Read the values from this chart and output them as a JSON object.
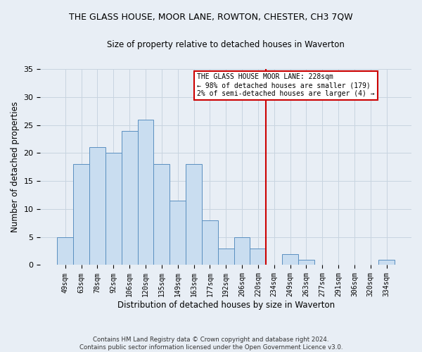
{
  "title": "THE GLASS HOUSE, MOOR LANE, ROWTON, CHESTER, CH3 7QW",
  "subtitle": "Size of property relative to detached houses in Waverton",
  "xlabel": "Distribution of detached houses by size in Waverton",
  "ylabel": "Number of detached properties",
  "footer_line1": "Contains HM Land Registry data © Crown copyright and database right 2024.",
  "footer_line2": "Contains public sector information licensed under the Open Government Licence v3.0.",
  "bar_labels": [
    "49sqm",
    "63sqm",
    "78sqm",
    "92sqm",
    "106sqm",
    "120sqm",
    "135sqm",
    "149sqm",
    "163sqm",
    "177sqm",
    "192sqm",
    "206sqm",
    "220sqm",
    "234sqm",
    "249sqm",
    "263sqm",
    "277sqm",
    "291sqm",
    "306sqm",
    "320sqm",
    "334sqm"
  ],
  "bar_values": [
    5,
    18,
    21,
    20,
    24,
    26,
    18,
    11.5,
    18,
    8,
    3,
    5,
    3,
    0,
    2,
    1,
    0,
    0,
    0,
    0,
    1
  ],
  "bar_color": "#c9ddf0",
  "bar_edge_color": "#5a8fc0",
  "grid_color": "#c8d4e0",
  "ylim": [
    0,
    35
  ],
  "yticks": [
    0,
    5,
    10,
    15,
    20,
    25,
    30,
    35
  ],
  "vline_x_index": 13,
  "vline_color": "#cc0000",
  "annotation_title": "THE GLASS HOUSE MOOR LANE: 228sqm",
  "annotation_line1": "← 98% of detached houses are smaller (179)",
  "annotation_line2": "2% of semi-detached houses are larger (4) →",
  "annotation_box_color": "#ffffff",
  "annotation_box_edge": "#cc0000",
  "background_color": "#e8eef5"
}
